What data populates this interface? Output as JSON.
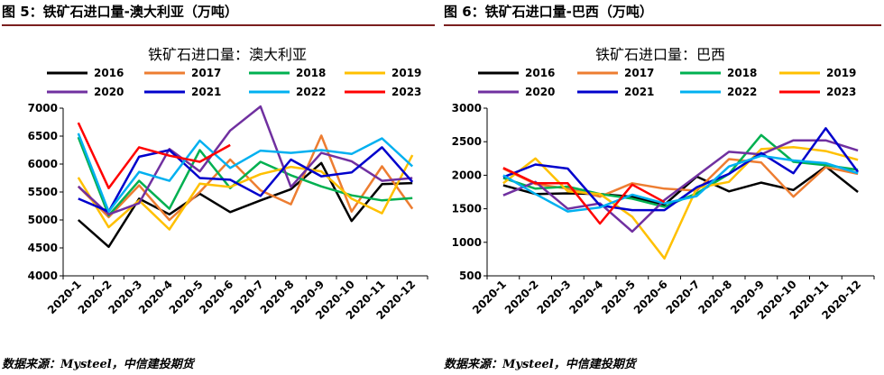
{
  "colors": {
    "2016": "#000000",
    "2017": "#ED7D31",
    "2018": "#00B050",
    "2019": "#FFC000",
    "2020": "#7030A0",
    "2021": "#0000CC",
    "2022": "#00B0F0",
    "2023": "#FF0000",
    "rule": "#7a1f1f"
  },
  "panels": [
    {
      "fig_title": "图 5：铁矿石进口量-澳大利亚（万吨）",
      "source": "数据来源：Mysteel，中信建投期货"
    },
    {
      "fig_title": "图 6：铁矿石进口量-巴西（万吨）",
      "source": "数据来源：Mysteel，中信建投期货"
    }
  ],
  "chart_data": [
    {
      "type": "line",
      "title": "铁矿石进口量：澳大利亚",
      "categories": [
        "2020-1",
        "2020-2",
        "2020-3",
        "2020-4",
        "2020-5",
        "2020-6",
        "2020-7",
        "2020-8",
        "2020-9",
        "2020-10",
        "2020-11",
        "2020-12"
      ],
      "ylim": [
        4000,
        7000
      ],
      "yticks": [
        "4000",
        "4500",
        "5000",
        "5500",
        "6000",
        "6500",
        "7000"
      ],
      "legend_position": "top",
      "series": [
        {
          "name": "2016",
          "values": [
            5000,
            4520,
            5380,
            5100,
            5470,
            5140,
            5350,
            5550,
            6020,
            4980,
            5640,
            5660
          ]
        },
        {
          "name": "2017",
          "values": [
            5600,
            5050,
            5620,
            5000,
            5500,
            6080,
            5530,
            5280,
            6510,
            5150,
            5960,
            5200
          ]
        },
        {
          "name": "2018",
          "values": [
            6480,
            5080,
            5700,
            5200,
            6250,
            5570,
            6040,
            5800,
            5600,
            5440,
            5350,
            5390
          ]
        },
        {
          "name": "2019",
          "values": [
            5760,
            4870,
            5350,
            4830,
            5650,
            5590,
            5820,
            5950,
            5870,
            5380,
            5120,
            6160
          ]
        },
        {
          "name": "2020",
          "values": [
            5600,
            5100,
            5300,
            6270,
            5870,
            6600,
            7030,
            5590,
            6200,
            6050,
            5700,
            5750
          ]
        },
        {
          "name": "2021",
          "values": [
            5380,
            5150,
            6130,
            6250,
            5750,
            5720,
            5430,
            6080,
            5780,
            5850,
            6300,
            5680
          ]
        },
        {
          "name": "2022",
          "values": [
            6550,
            5150,
            5860,
            5700,
            6420,
            5930,
            6240,
            6200,
            6250,
            6180,
            6460,
            5960
          ]
        },
        {
          "name": "2023",
          "values": [
            6740,
            5570,
            6300,
            6150,
            6040,
            6340,
            null,
            null,
            null,
            null,
            null,
            null
          ]
        }
      ]
    },
    {
      "type": "line",
      "title": "铁矿石进口量：巴西",
      "categories": [
        "2020-1",
        "2020-2",
        "2020-3",
        "2020-4",
        "2020-5",
        "2020-6",
        "2020-7",
        "2020-8",
        "2020-9",
        "2020-10",
        "2020-11",
        "2020-12"
      ],
      "ylim": [
        500,
        3000
      ],
      "yticks": [
        "500",
        "1000",
        "1500",
        "2000",
        "2500",
        "3000"
      ],
      "legend_position": "top",
      "series": [
        {
          "name": "2016",
          "values": [
            1850,
            1720,
            1730,
            1720,
            1680,
            1560,
            1980,
            1760,
            1890,
            1780,
            2130,
            1750
          ]
        },
        {
          "name": "2017",
          "values": [
            2100,
            1870,
            1800,
            1680,
            1880,
            1800,
            1770,
            2240,
            2190,
            1680,
            2120,
            2020
          ]
        },
        {
          "name": "2018",
          "values": [
            1960,
            1800,
            1830,
            1720,
            1650,
            1530,
            1730,
            2020,
            2600,
            2200,
            2150,
            2080
          ]
        },
        {
          "name": "2019",
          "values": [
            1880,
            2250,
            1760,
            1720,
            1380,
            760,
            1810,
            1900,
            2390,
            2420,
            2360,
            2230
          ]
        },
        {
          "name": "2020",
          "values": [
            1700,
            1900,
            1500,
            1580,
            1160,
            1630,
            1990,
            2350,
            2310,
            2520,
            2520,
            2370
          ]
        },
        {
          "name": "2021",
          "values": [
            1970,
            2160,
            2100,
            1550,
            1480,
            1480,
            1820,
            2020,
            2330,
            2030,
            2700,
            2050
          ]
        },
        {
          "name": "2022",
          "values": [
            2000,
            1720,
            1460,
            1520,
            1710,
            1580,
            1690,
            2130,
            2290,
            2220,
            2180,
            2030
          ]
        },
        {
          "name": "2023",
          "values": [
            2110,
            1880,
            1880,
            1280,
            1860,
            1600,
            null,
            null,
            null,
            null,
            null,
            null
          ]
        }
      ]
    }
  ]
}
